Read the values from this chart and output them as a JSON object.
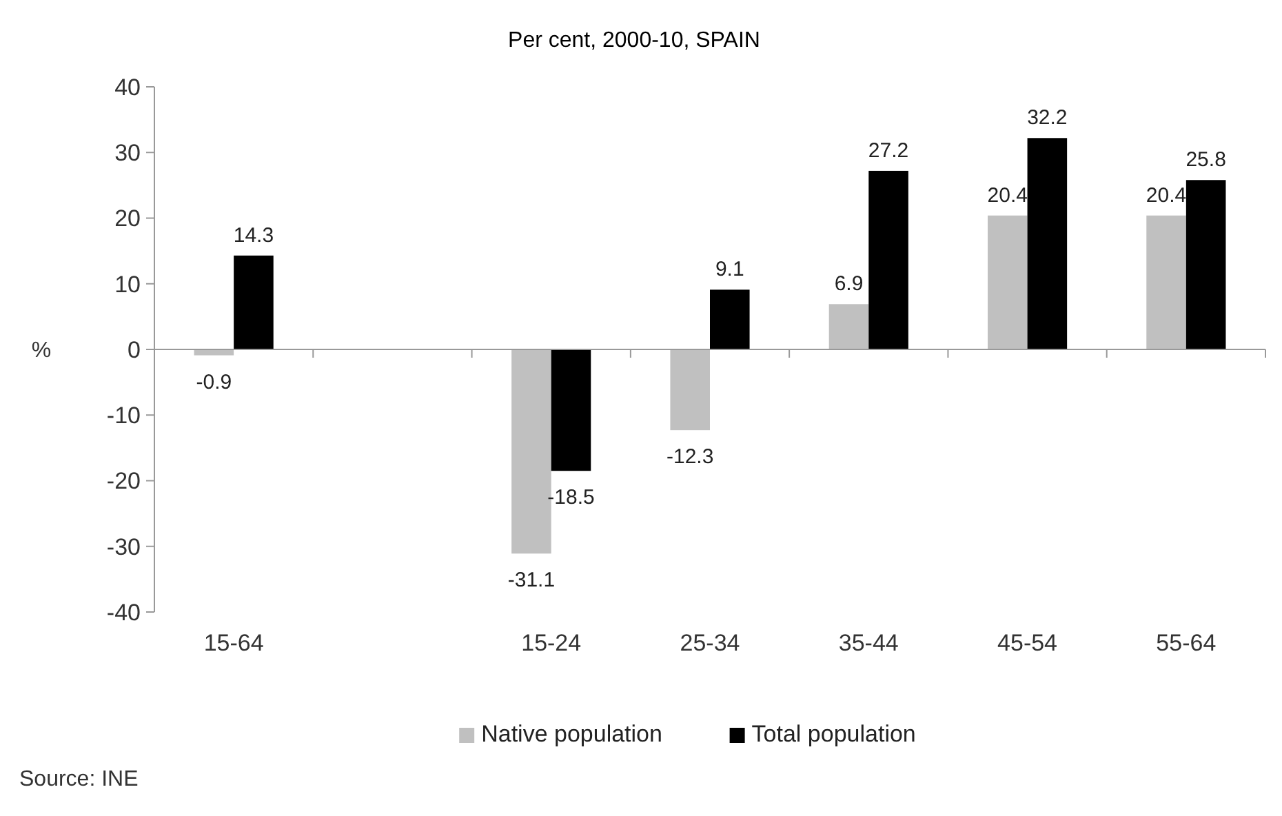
{
  "chart_data": {
    "type": "bar",
    "title": "Per cent, 2000-10, SPAIN",
    "ylabel": "%",
    "categories": [
      "15-64",
      null,
      "15-24",
      "25-34",
      "35-44",
      "45-54",
      "55-64"
    ],
    "series": [
      {
        "name": "Native population",
        "color": "#c0c0c0",
        "values": [
          -0.9,
          null,
          -31.1,
          -12.3,
          6.9,
          20.4,
          20.4
        ]
      },
      {
        "name": "Total population",
        "color": "#000000",
        "values": [
          14.3,
          null,
          -18.5,
          9.1,
          27.2,
          32.2,
          25.8
        ]
      }
    ],
    "ylim": [
      -40,
      40
    ],
    "yticks": [
      -40,
      -30,
      -20,
      -10,
      0,
      10,
      20,
      30,
      40
    ],
    "data_labels": true,
    "legend": "bottom",
    "annotations": [
      "Source: INE"
    ]
  }
}
